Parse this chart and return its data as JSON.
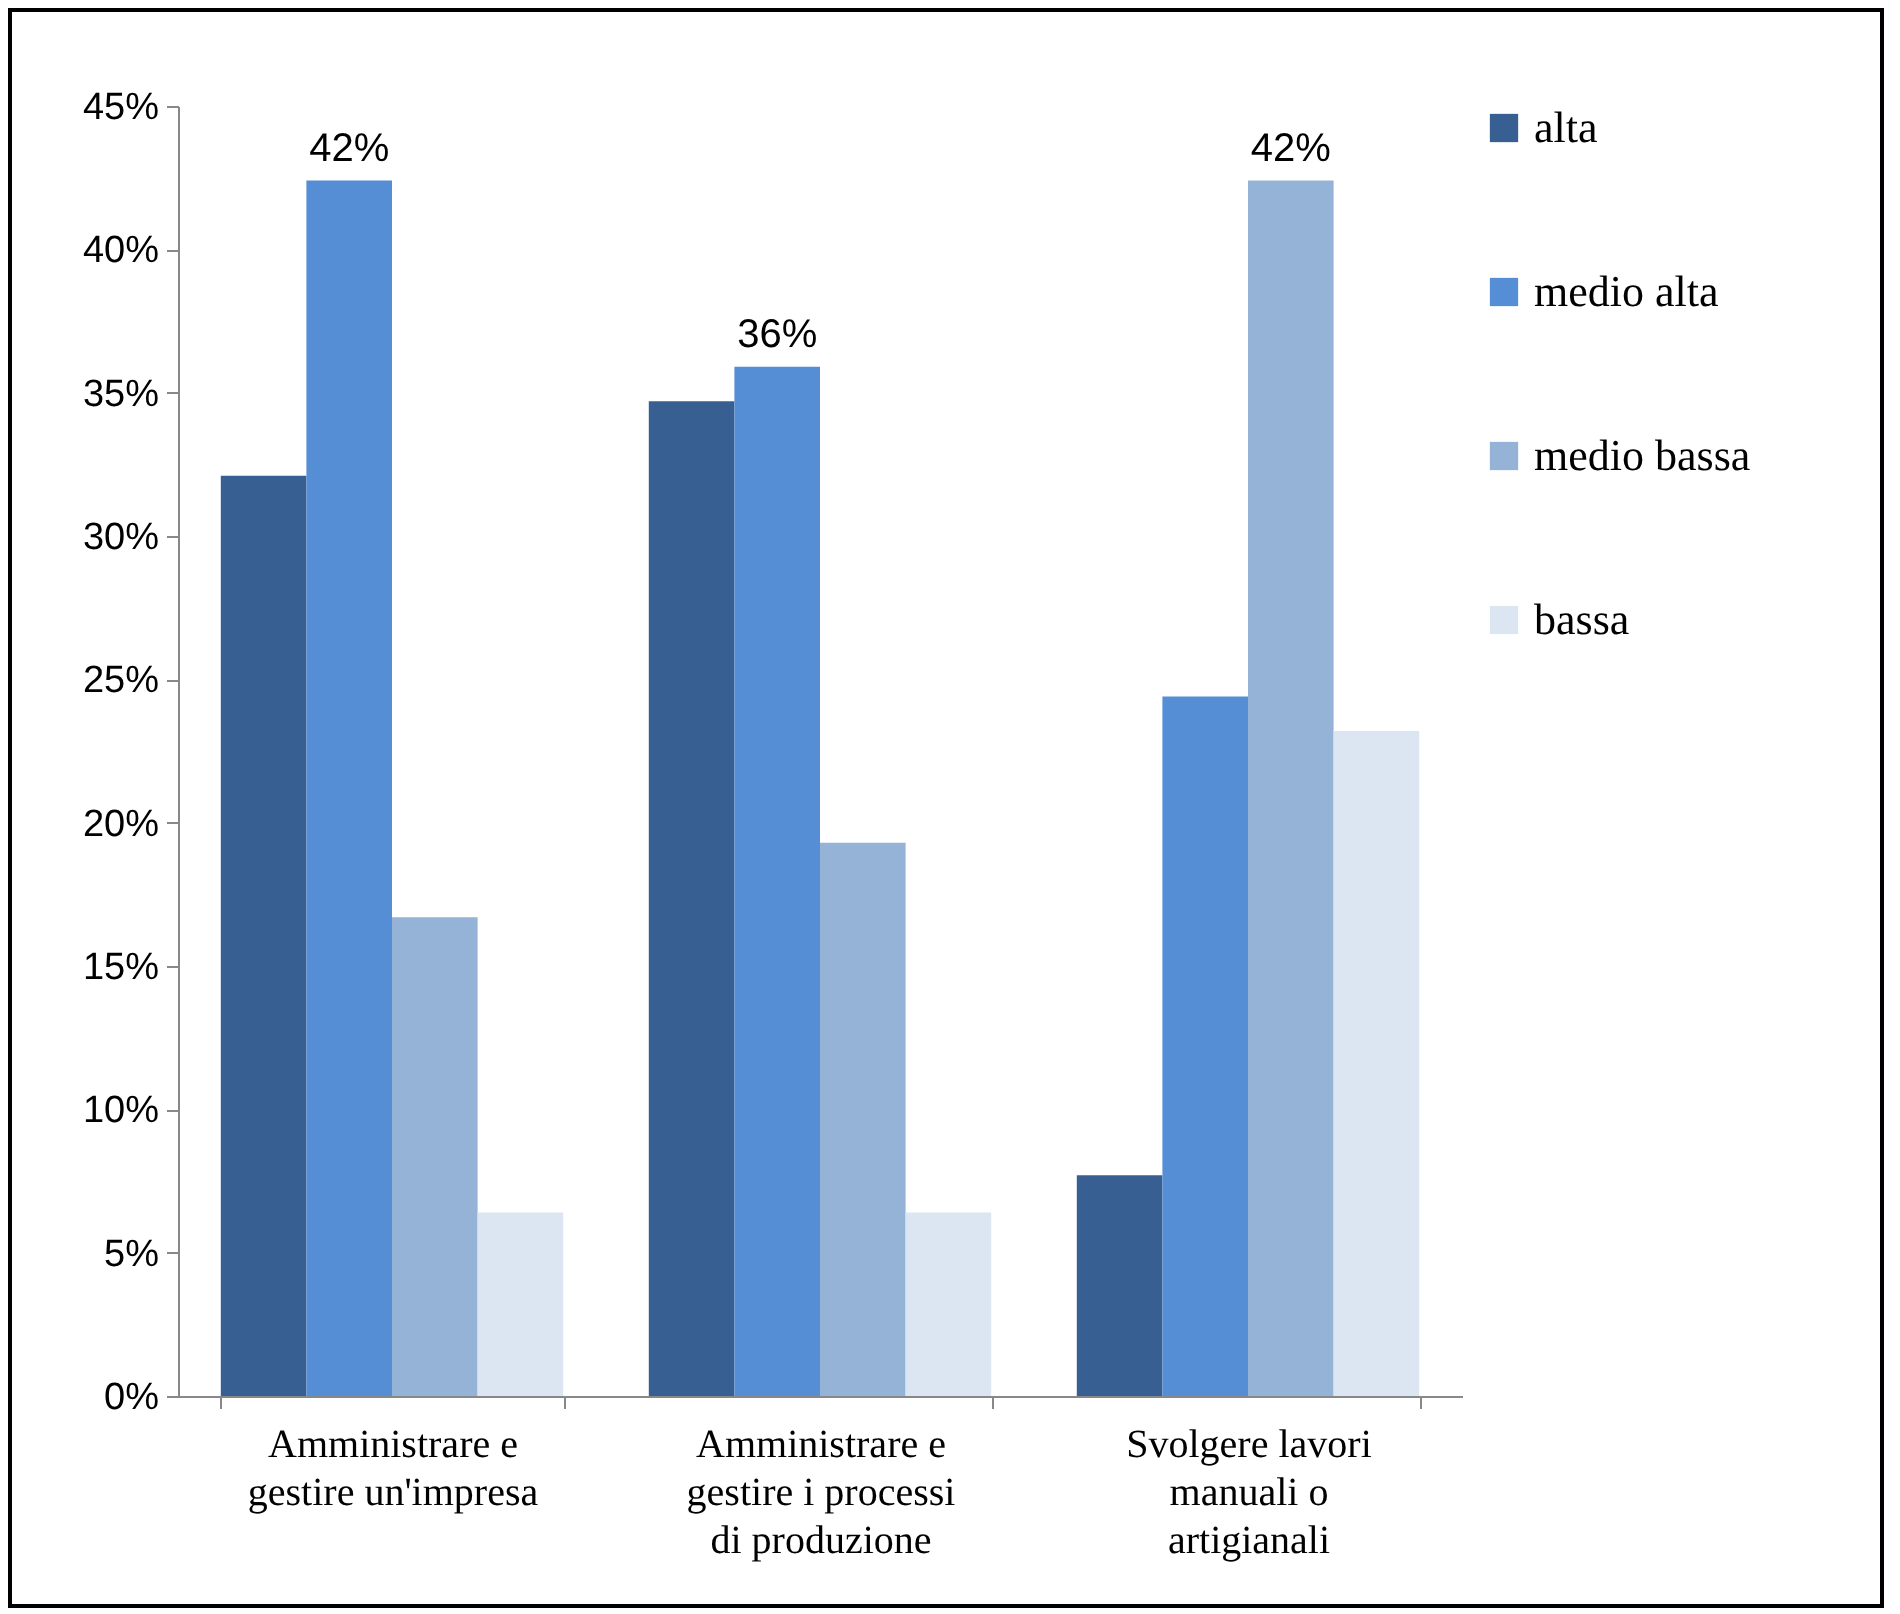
{
  "chart_data": {
    "type": "bar",
    "categories": [
      "Amministrare e gestire un'impresa",
      "Amministrare e gestire i processi di produzione",
      "Svolgere lavori manuali o artigianali"
    ],
    "series": [
      {
        "name": "alta",
        "color": "#375f91",
        "values": [
          32.1,
          34.7,
          7.7
        ],
        "value_labels": [
          null,
          null,
          null
        ]
      },
      {
        "name": "medio alta",
        "color": "#558ed5",
        "values": [
          42.4,
          35.9,
          24.4
        ],
        "value_labels": [
          "42%",
          "36%",
          null
        ]
      },
      {
        "name": "medio bassa",
        "color": "#95b3d7",
        "values": [
          16.7,
          19.3,
          42.4
        ],
        "value_labels": [
          null,
          null,
          "42%"
        ]
      },
      {
        "name": "bassa",
        "color": "#dce6f2",
        "values": [
          6.4,
          6.4,
          23.2
        ],
        "value_labels": [
          null,
          null,
          null
        ]
      }
    ],
    "ylim": [
      0,
      45
    ],
    "yticks": [
      {
        "value": 0,
        "label": "0%"
      },
      {
        "value": 5,
        "label": "5%"
      },
      {
        "value": 10,
        "label": "10%"
      },
      {
        "value": 15,
        "label": "15%"
      },
      {
        "value": 20,
        "label": "20%"
      },
      {
        "value": 25,
        "label": "25%"
      },
      {
        "value": 30,
        "label": "30%"
      },
      {
        "value": 35,
        "label": "35%"
      },
      {
        "value": 40,
        "label": "40%"
      },
      {
        "value": 45,
        "label": "45%"
      }
    ],
    "legend": "right"
  }
}
